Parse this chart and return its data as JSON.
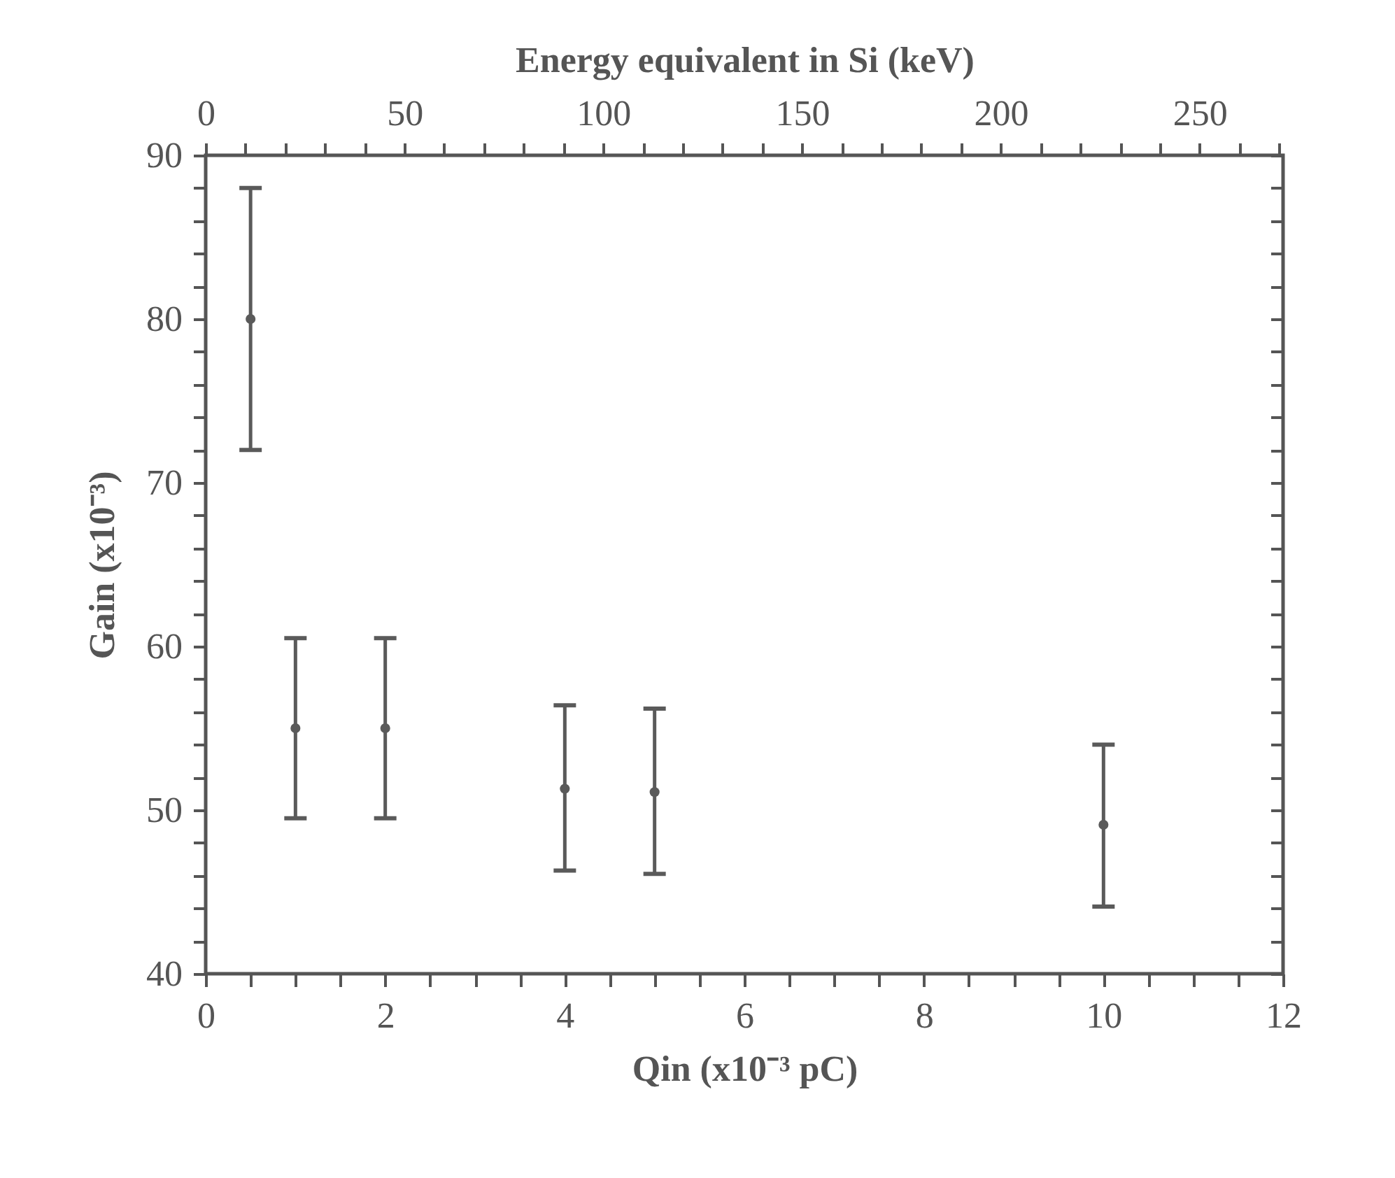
{
  "chart_data": {
    "type": "scatter",
    "xlabel": "Qin (x10⁻³ pC)",
    "ylabel": "Gain (x10⁻³)",
    "x2label": "Energy equivalent in Si (keV)",
    "x": [
      0.5,
      1,
      2,
      4,
      5,
      10
    ],
    "series": [
      {
        "color": "#5a5a5a",
        "values": [
          80,
          55,
          55,
          51.3,
          51.1,
          49.1
        ],
        "errors": [
          [
            72,
            88
          ],
          [
            49.5,
            60.5
          ],
          [
            49.5,
            60.5
          ],
          [
            46.3,
            56.4
          ],
          [
            46.1,
            56.2
          ],
          [
            44.1,
            54
          ]
        ]
      }
    ],
    "xlim": [
      0,
      12
    ],
    "xticks": [
      0,
      {
        "value": 0.5,
        "label": null
      },
      {
        "value": 1,
        "label": null
      },
      {
        "value": 1.5,
        "label": null
      },
      2,
      {
        "value": 2.5,
        "label": null
      },
      {
        "value": 3,
        "label": null
      },
      {
        "value": 3.5,
        "label": null
      },
      4,
      {
        "value": 4.5,
        "label": null
      },
      {
        "value": 5,
        "label": null
      },
      {
        "value": 5.5,
        "label": null
      },
      6,
      {
        "value": 6.5,
        "label": null
      },
      {
        "value": 7,
        "label": null
      },
      {
        "value": 7.5,
        "label": null
      },
      8,
      {
        "value": 8.5,
        "label": null
      },
      {
        "value": 9,
        "label": null
      },
      {
        "value": 9.5,
        "label": null
      },
      10,
      {
        "value": 10.5,
        "label": null
      },
      {
        "value": 11,
        "label": null
      },
      {
        "value": 11.5,
        "label": null
      },
      12
    ],
    "x2lim": [
      0,
      271
    ],
    "x2ticks": [
      0,
      {
        "value": 10,
        "label": null
      },
      {
        "value": 20,
        "label": null
      },
      {
        "value": 30,
        "label": null
      },
      {
        "value": 40,
        "label": null
      },
      50,
      {
        "value": 60,
        "label": null
      },
      {
        "value": 70,
        "label": null
      },
      {
        "value": 80,
        "label": null
      },
      {
        "value": 90,
        "label": null
      },
      100,
      {
        "value": 110,
        "label": null
      },
      {
        "value": 120,
        "label": null
      },
      {
        "value": 130,
        "label": null
      },
      {
        "value": 140,
        "label": null
      },
      150,
      {
        "value": 160,
        "label": null
      },
      {
        "value": 170,
        "label": null
      },
      {
        "value": 180,
        "label": null
      },
      {
        "value": 190,
        "label": null
      },
      200,
      {
        "value": 210,
        "label": null
      },
      {
        "value": 220,
        "label": null
      },
      {
        "value": 230,
        "label": null
      },
      {
        "value": 240,
        "label": null
      },
      250,
      {
        "value": 260,
        "label": null
      },
      {
        "value": 270,
        "label": null
      }
    ],
    "ylim": [
      40,
      90
    ],
    "yticks": [
      40,
      {
        "value": 42,
        "label": null
      },
      {
        "value": 44,
        "label": null
      },
      {
        "value": 46,
        "label": null
      },
      {
        "value": 48,
        "label": null
      },
      50,
      {
        "value": 52,
        "label": null
      },
      {
        "value": 54,
        "label": null
      },
      {
        "value": 56,
        "label": null
      },
      {
        "value": 58,
        "label": null
      },
      60,
      {
        "value": 62,
        "label": null
      },
      {
        "value": 64,
        "label": null
      },
      {
        "value": 66,
        "label": null
      },
      {
        "value": 68,
        "label": null
      },
      70,
      {
        "value": 72,
        "label": null
      },
      {
        "value": 74,
        "label": null
      },
      {
        "value": 76,
        "label": null
      },
      {
        "value": 78,
        "label": null
      },
      80,
      {
        "value": 82,
        "label": null
      },
      {
        "value": 84,
        "label": null
      },
      {
        "value": 86,
        "label": null
      },
      {
        "value": 88,
        "label": null
      },
      90
    ],
    "marker": "circle",
    "grid": false,
    "legend": false
  }
}
